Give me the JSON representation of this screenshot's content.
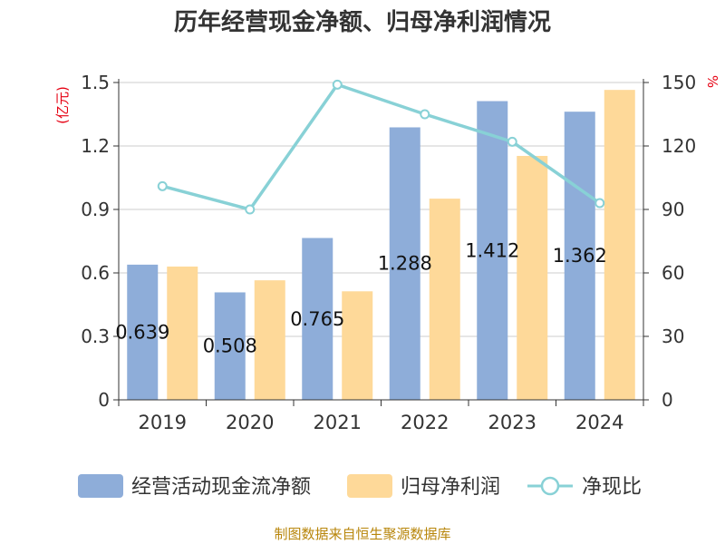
{
  "title": "历年经营现金净额、归母净利润情况",
  "source": "制图数据来自恒生聚源数据库",
  "colors": {
    "cash_flow": "#8eadd9",
    "net_profit": "#fed999",
    "ratio": "#88d1d6",
    "unit": "#e60012",
    "axis_text": "#333333",
    "grid": "#cccccc"
  },
  "chart_data": {
    "type": "bar",
    "categories": [
      "2019",
      "2020",
      "2021",
      "2022",
      "2023",
      "2024"
    ],
    "series": [
      {
        "name": "经营活动现金流净额",
        "kind": "bar",
        "axis": "left",
        "values": [
          0.639,
          0.508,
          0.765,
          1.288,
          1.412,
          1.362
        ],
        "data_labels": [
          "0.639",
          "0.508",
          "0.765",
          "1.288",
          "1.412",
          "1.362"
        ]
      },
      {
        "name": "归母净利润",
        "kind": "bar",
        "axis": "left",
        "values": [
          0.63,
          0.565,
          0.513,
          0.951,
          1.153,
          1.465
        ]
      },
      {
        "name": "净现比",
        "kind": "line",
        "axis": "right",
        "values": [
          101,
          90,
          149,
          135,
          122,
          93
        ]
      }
    ],
    "y_left": {
      "unit": "(亿元)",
      "range": [
        0,
        1.5
      ],
      "ticks": [
        "0",
        "0.3",
        "0.6",
        "0.9",
        "1.2",
        "1.5"
      ]
    },
    "y_right": {
      "unit": "%",
      "range": [
        0,
        150
      ],
      "ticks": [
        "0",
        "30",
        "60",
        "90",
        "120",
        "150"
      ]
    },
    "grid": true,
    "legend_position": "bottom"
  }
}
